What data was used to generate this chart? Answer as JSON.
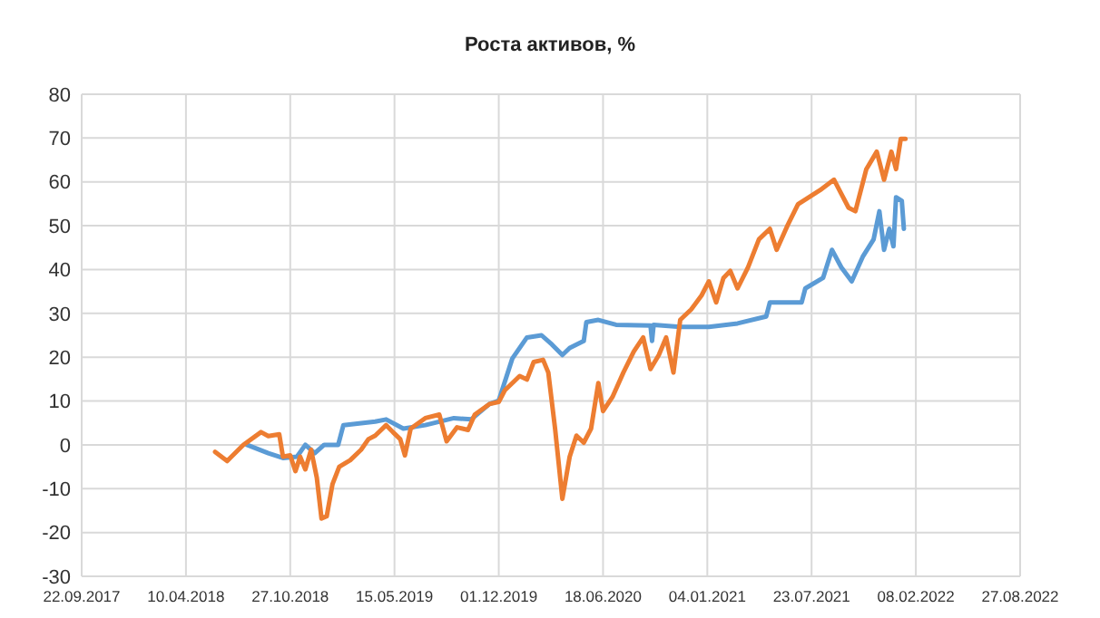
{
  "chart_data": {
    "type": "line",
    "title": "Роста активов, %",
    "grid": true,
    "marker": "none",
    "line_style": "solid",
    "xlim": [
      "2017-09-22",
      "2022-08-27"
    ],
    "xticks": [
      {
        "value": "2017-09-22",
        "label": "22.09.2017"
      },
      {
        "value": "2018-04-10",
        "label": "10.04.2018"
      },
      {
        "value": "2018-10-27",
        "label": "27.10.2018"
      },
      {
        "value": "2019-05-15",
        "label": "15.05.2019"
      },
      {
        "value": "2019-12-01",
        "label": "01.12.2019"
      },
      {
        "value": "2020-06-18",
        "label": "18.06.2020"
      },
      {
        "value": "2021-01-04",
        "label": "04.01.2021"
      },
      {
        "value": "2021-07-23",
        "label": "23.07.2021"
      },
      {
        "value": "2022-02-08",
        "label": "08.02.2022"
      },
      {
        "value": "2022-08-27",
        "label": "27.08.2022"
      }
    ],
    "ylim": [
      -30,
      80
    ],
    "yticks": [
      -30,
      -20,
      -10,
      0,
      10,
      20,
      30,
      40,
      50,
      60,
      70,
      80
    ],
    "series": [
      {
        "color": "#5b9bd5",
        "x": [
          "2018-08-05",
          "2018-09-15",
          "2018-10-13",
          "2018-11-09",
          "2018-11-25",
          "2018-12-13",
          "2018-12-31",
          "2019-01-27",
          "2019-02-06",
          "2019-04-08",
          "2019-04-29",
          "2019-06-01",
          "2019-07-13",
          "2019-09-06",
          "2019-10-09",
          "2019-11-13",
          "2019-12-01",
          "2019-12-27",
          "2020-01-24",
          "2020-02-21",
          "2020-03-12",
          "2020-04-01",
          "2020-04-15",
          "2020-05-12",
          "2020-05-17",
          "2020-06-09",
          "2020-07-13",
          "2020-09-17",
          "2020-09-20",
          "2020-09-23",
          "2020-11-13",
          "2021-01-07",
          "2021-03-03",
          "2021-04-27",
          "2021-05-04",
          "2021-07-04",
          "2021-07-11",
          "2021-08-14",
          "2021-08-31",
          "2021-09-18",
          "2021-10-08",
          "2021-10-29",
          "2021-11-19",
          "2021-11-30",
          "2021-12-09",
          "2021-12-19",
          "2021-12-27",
          "2022-01-01",
          "2022-01-12",
          "2022-01-16"
        ],
        "values": [
          0,
          -1.9,
          -3,
          -2.7,
          0,
          -1.9,
          0,
          0,
          4.5,
          5.3,
          5.8,
          3.7,
          4.5,
          6.1,
          5.8,
          9.3,
          10.1,
          19.7,
          24.5,
          25,
          22.9,
          20.5,
          22.1,
          23.7,
          28,
          28.5,
          27.4,
          27.2,
          23.7,
          27.4,
          26.9,
          26.9,
          27.7,
          29.3,
          32.5,
          32.5,
          35.7,
          38.1,
          44.5,
          40.5,
          37.3,
          42.9,
          46.9,
          53.3,
          44.5,
          49.3,
          45.3,
          56.5,
          55.7,
          49.3
        ]
      },
      {
        "color": "#ed7d31",
        "x": [
          "2018-06-05",
          "2018-06-28",
          "2018-07-29",
          "2018-09-01",
          "2018-09-15",
          "2018-10-06",
          "2018-10-13",
          "2018-10-27",
          "2018-11-06",
          "2018-11-15",
          "2018-11-25",
          "2018-12-06",
          "2018-12-17",
          "2018-12-26",
          "2019-01-05",
          "2019-01-16",
          "2019-01-29",
          "2019-02-19",
          "2019-03-12",
          "2019-03-26",
          "2019-04-08",
          "2019-04-29",
          "2019-05-12",
          "2019-05-26",
          "2019-06-04",
          "2019-06-15",
          "2019-07-13",
          "2019-08-09",
          "2019-08-23",
          "2019-09-12",
          "2019-10-03",
          "2019-10-16",
          "2019-11-13",
          "2019-12-01",
          "2019-12-13",
          "2020-01-10",
          "2020-01-24",
          "2020-02-06",
          "2020-02-24",
          "2020-03-05",
          "2020-03-18",
          "2020-04-01",
          "2020-04-15",
          "2020-04-28",
          "2020-05-12",
          "2020-05-26",
          "2020-06-09",
          "2020-06-18",
          "2020-07-06",
          "2020-07-27",
          "2020-08-16",
          "2020-09-03",
          "2020-09-17",
          "2020-10-03",
          "2020-10-17",
          "2020-10-31",
          "2020-11-13",
          "2020-12-04",
          "2020-12-24",
          "2021-01-07",
          "2021-01-21",
          "2021-02-04",
          "2021-02-17",
          "2021-03-03",
          "2021-03-23",
          "2021-04-13",
          "2021-05-04",
          "2021-05-17",
          "2021-06-07",
          "2021-06-27",
          "2021-07-18",
          "2021-08-08",
          "2021-09-04",
          "2021-09-18",
          "2021-10-02",
          "2021-10-15",
          "2021-11-05",
          "2021-11-25",
          "2021-12-09",
          "2021-12-23",
          "2022-01-01",
          "2022-01-10",
          "2022-01-19"
        ],
        "values": [
          -1.6,
          -3.7,
          0,
          2.9,
          2,
          2.4,
          -2.7,
          -2.4,
          -6,
          -2.7,
          -5.6,
          -1.1,
          -7.5,
          -16.8,
          -16.3,
          -9,
          -5,
          -3.5,
          -1.1,
          1.3,
          2.1,
          4.5,
          2.9,
          1.3,
          -2.4,
          3.7,
          6.1,
          6.9,
          0.8,
          4,
          3.4,
          6.9,
          9.3,
          9.8,
          12.5,
          15.7,
          14.9,
          18.9,
          19.4,
          16.5,
          3.7,
          -12.3,
          -2.7,
          2.1,
          0.5,
          3.7,
          14.1,
          7.7,
          10.9,
          16.5,
          21.3,
          24.5,
          17.3,
          20.5,
          24.5,
          16.5,
          28.5,
          30.9,
          34.1,
          37.3,
          32.5,
          38.1,
          39.7,
          35.7,
          40.5,
          46.9,
          49.3,
          44.5,
          50.1,
          54.9,
          56.5,
          58.1,
          60.5,
          57.3,
          54.1,
          53.3,
          62.9,
          66.9,
          60.5,
          66.9,
          62.9,
          69.8,
          69.8
        ]
      }
    ]
  }
}
